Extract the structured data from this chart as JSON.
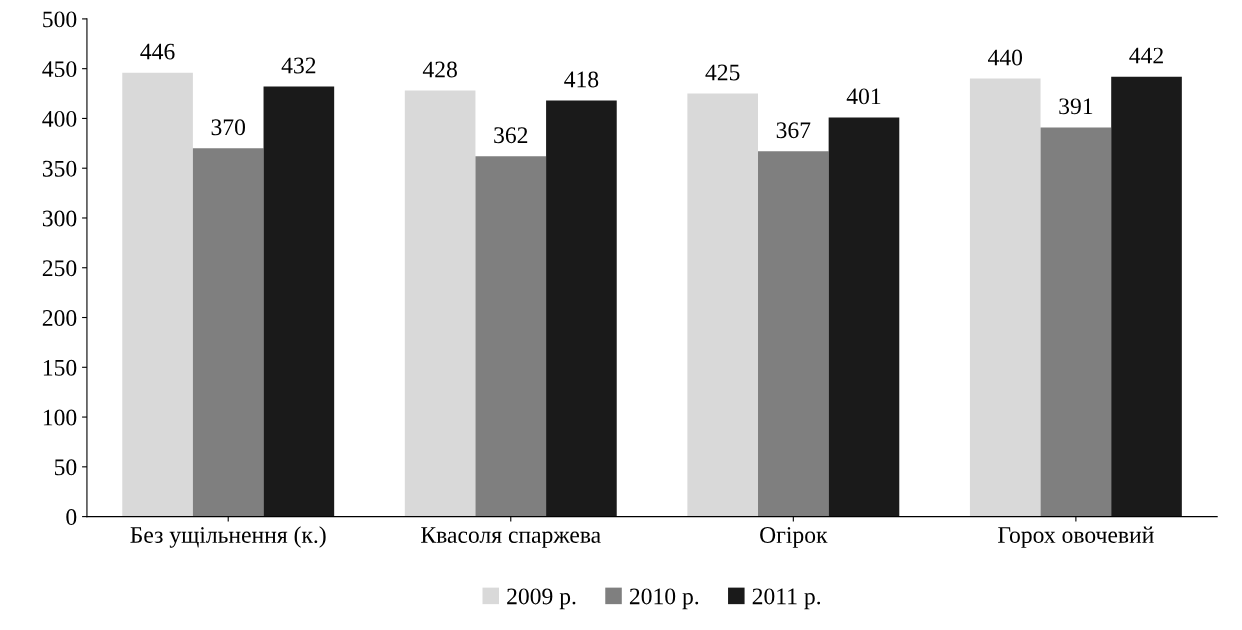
{
  "chart_data": {
    "type": "bar",
    "categories": [
      "Без ущільнення (к.)",
      "Квасоля спаржева",
      "Огірок",
      "Горох овочевий"
    ],
    "series": [
      {
        "name": "2009 р.",
        "color": "#d9d9d9",
        "values": [
          446,
          428,
          425,
          440
        ]
      },
      {
        "name": "2010 р.",
        "color": "#7f7f7f",
        "values": [
          370,
          362,
          367,
          391
        ]
      },
      {
        "name": "2011 р.",
        "color": "#1a1a1a",
        "values": [
          432,
          418,
          401,
          442
        ]
      }
    ],
    "ylim": [
      0,
      500
    ],
    "yticks": [
      0,
      50,
      100,
      150,
      200,
      250,
      300,
      350,
      400,
      450,
      500
    ],
    "grid": false,
    "legend": "bottom",
    "data_labels": true
  }
}
